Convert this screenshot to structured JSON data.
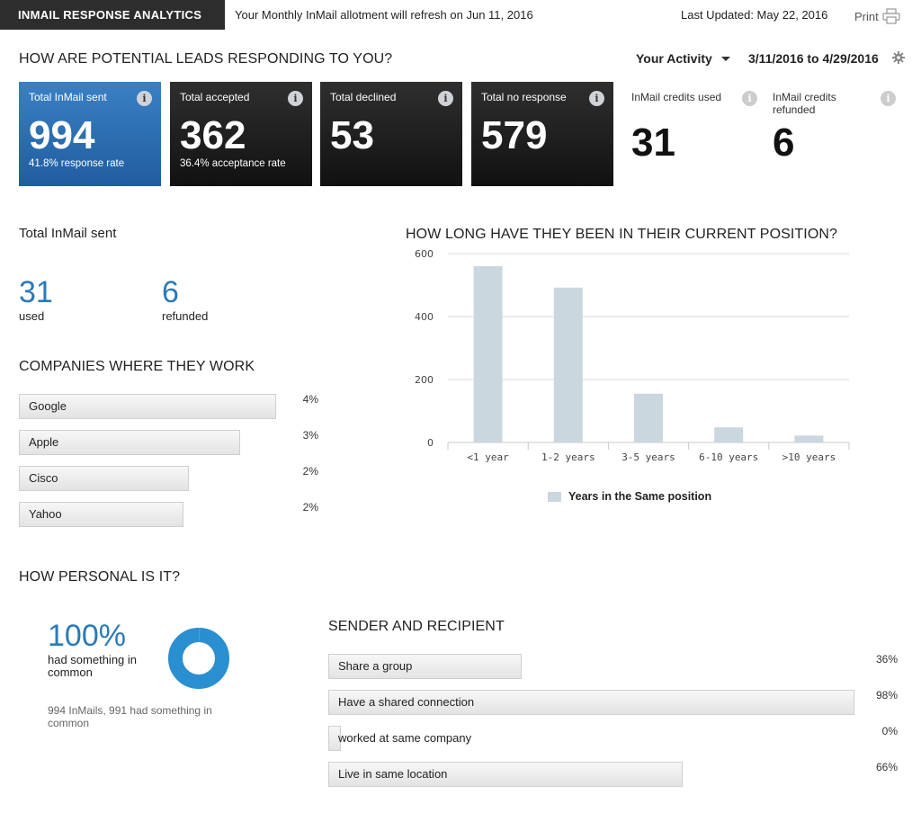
{
  "header": {
    "app_title": "INMAIL RESPONSE ANALYTICS",
    "allotment_text": "Your Monthly InMail allotment will refresh on Jun 11, 2016",
    "last_updated": "Last Updated: May 22, 2016",
    "print_label": "Print",
    "print_icon": "printer-icon"
  },
  "leads": {
    "title": "HOW ARE POTENTIAL LEADS RESPONDING TO YOU?",
    "activity_label": "Your Activity",
    "date_range": "3/11/2016 to 4/29/2016",
    "settings_icon": "gear-icon",
    "tiles": [
      {
        "label": "Total InMail sent",
        "value": "994",
        "sub": "41.8% response rate",
        "style": "blue"
      },
      {
        "label": "Total accepted",
        "value": "362",
        "sub": "36.4% acceptance rate",
        "style": "dark"
      },
      {
        "label": "Total declined",
        "value": "53",
        "sub": "",
        "style": "dark"
      },
      {
        "label": "Total no response",
        "value": "579",
        "sub": "",
        "style": "dark"
      }
    ],
    "credits_used": {
      "label": "InMail credits used",
      "value": "31"
    },
    "credits_refunded": {
      "label": "InMail credits refunded",
      "value": "6"
    },
    "info_glyph": "i"
  },
  "inmail_sent": {
    "title": "Total InMail sent",
    "used_value": "31",
    "used_label": "used",
    "refunded_value": "6",
    "refunded_label": "refunded"
  },
  "companies": {
    "title": "COMPANIES WHERE THEY WORK",
    "items": [
      {
        "name": "Google",
        "pct": "4%",
        "fraction": 1.0
      },
      {
        "name": "Apple",
        "pct": "3%",
        "fraction": 0.86
      },
      {
        "name": "Cisco",
        "pct": "2%",
        "fraction": 0.66
      },
      {
        "name": "Yahoo",
        "pct": "2%",
        "fraction": 0.64
      }
    ]
  },
  "position": {
    "title": "HOW LONG HAVE THEY BEEN IN THEIR CURRENT POSITION?"
  },
  "chart_data": {
    "type": "bar",
    "title": "HOW LONG HAVE THEY BEEN IN THEIR CURRENT POSITION?",
    "categories": [
      "<1 year",
      "1-2 years",
      "3-5 years",
      "6-10 years",
      ">10 years"
    ],
    "series": [
      {
        "name": "Years in the Same position",
        "values": [
          560,
          492,
          155,
          48,
          22
        ],
        "color": "#cbd7df"
      }
    ],
    "y_ticks": [
      "0",
      "200",
      "400",
      "600"
    ],
    "ylim": [
      0,
      600
    ],
    "grid": true,
    "legend": "bottom"
  },
  "personal": {
    "title": "HOW PERSONAL IS IT?",
    "percent": "100%",
    "common_text": "had something in common",
    "note": "994 InMails, 991 had something in common",
    "donut_fraction": 0.997,
    "donut_color": "#2a8fd0"
  },
  "sender": {
    "title": "SENDER AND RECIPIENT",
    "items": [
      {
        "name": "Share a group",
        "pct": "36%",
        "fraction": 0.36
      },
      {
        "name": "Have a shared connection",
        "pct": "98%",
        "fraction": 0.98
      },
      {
        "name": "worked at same company",
        "pct": "0%",
        "fraction": 0.02
      },
      {
        "name": "Live in same location",
        "pct": "66%",
        "fraction": 0.66
      }
    ]
  }
}
